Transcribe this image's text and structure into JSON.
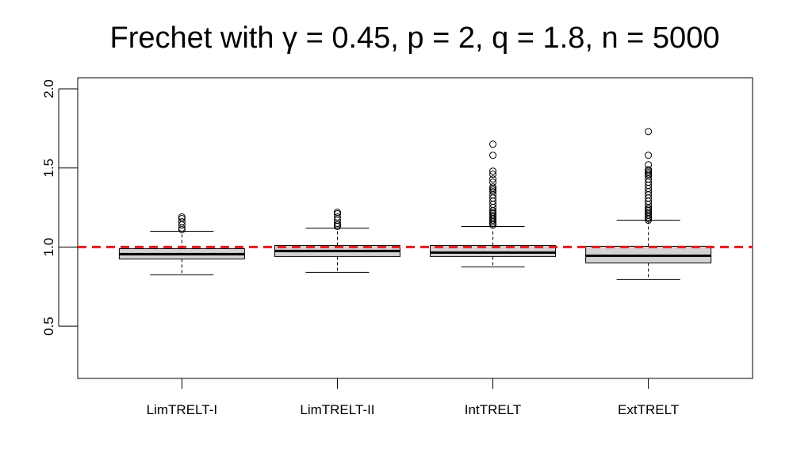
{
  "chart_data": {
    "type": "boxplot",
    "title": "Frechet with γ = 0.45, p = 2, q = 1.8, n = 5000",
    "xlabel": "",
    "ylabel": "",
    "ylim": [
      0.17,
      2.07
    ],
    "yticks": [
      0.5,
      1.0,
      1.5,
      2.0
    ],
    "ytick_labels": [
      "0.5",
      "1.0",
      "1.5",
      "2.0"
    ],
    "categories": [
      "LimTRELT-I",
      "LimTRELT-II",
      "IntTRELT",
      "ExtTRELT"
    ],
    "boxes": [
      {
        "label": "LimTRELT-I",
        "whisker_low": 0.825,
        "q1": 0.925,
        "median": 0.955,
        "q3": 0.99,
        "whisker_high": 1.1,
        "outliers": [
          1.11,
          1.12,
          1.14,
          1.16,
          1.18,
          1.19
        ]
      },
      {
        "label": "LimTRELT-II",
        "whisker_low": 0.84,
        "q1": 0.94,
        "median": 0.975,
        "q3": 1.01,
        "whisker_high": 1.12,
        "outliers": [
          1.13,
          1.14,
          1.15,
          1.17,
          1.19,
          1.21,
          1.22
        ]
      },
      {
        "label": "IntTRELT",
        "whisker_low": 0.875,
        "q1": 0.94,
        "median": 0.965,
        "q3": 1.01,
        "whisker_high": 1.13,
        "outliers": [
          1.14,
          1.15,
          1.16,
          1.17,
          1.18,
          1.19,
          1.2,
          1.21,
          1.22,
          1.23,
          1.25,
          1.27,
          1.29,
          1.31,
          1.33,
          1.35,
          1.36,
          1.37,
          1.38,
          1.41,
          1.43,
          1.46,
          1.48,
          1.58,
          1.65
        ]
      },
      {
        "label": "ExtTRELT",
        "whisker_low": 0.795,
        "q1": 0.9,
        "median": 0.945,
        "q3": 1.005,
        "whisker_high": 1.17,
        "outliers": [
          1.17,
          1.18,
          1.19,
          1.2,
          1.21,
          1.22,
          1.23,
          1.24,
          1.25,
          1.27,
          1.29,
          1.31,
          1.33,
          1.35,
          1.37,
          1.39,
          1.41,
          1.43,
          1.45,
          1.46,
          1.47,
          1.48,
          1.49,
          1.52,
          1.58,
          1.73
        ]
      }
    ],
    "reference_line": {
      "y": 1.0,
      "style": "dashed",
      "color": "#e41a1c"
    },
    "box_fill": "#d3d3d3",
    "grid": false,
    "legend": "none"
  }
}
